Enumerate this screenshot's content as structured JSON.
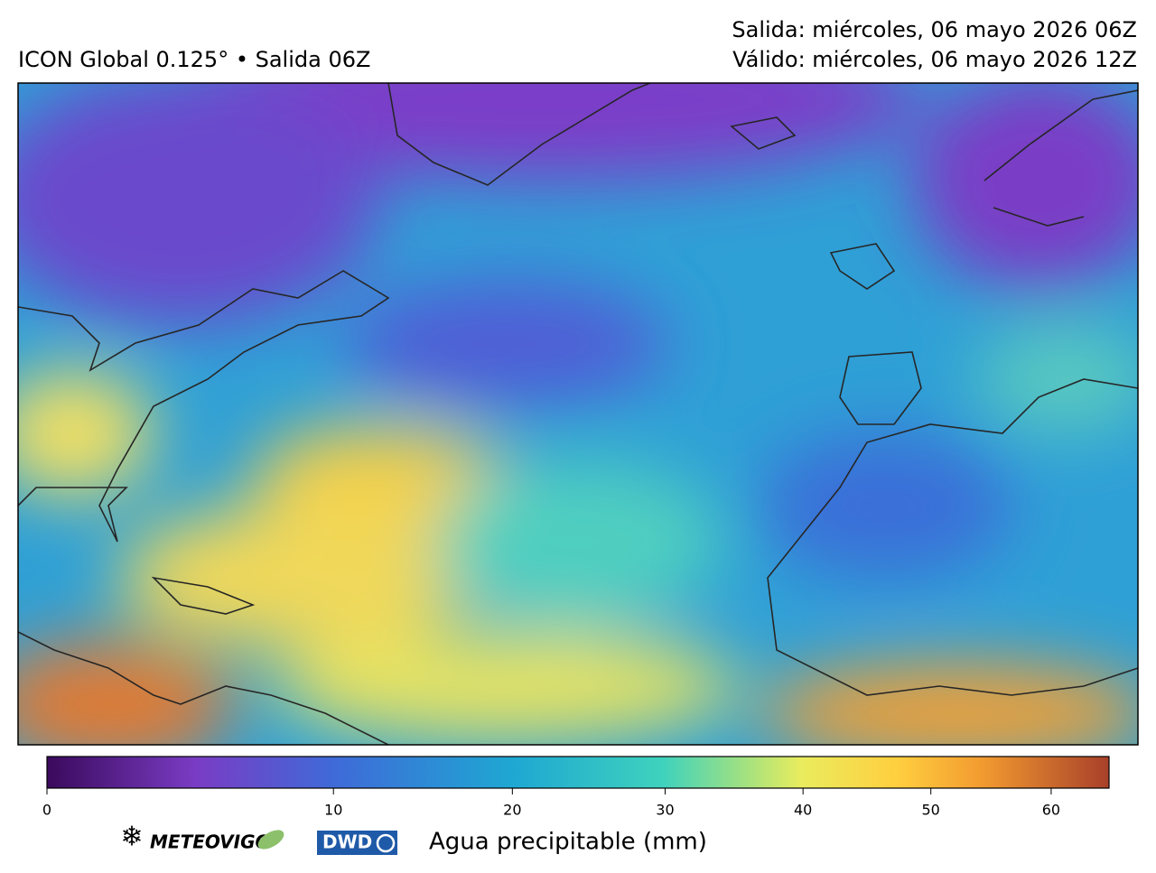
{
  "header": {
    "title": "ICON Global 0.125° • Salida 06Z",
    "run": "Salida: miércoles, 06 mayo 2026 06Z",
    "valid": "Válido: miércoles, 06 mayo 2026 12Z"
  },
  "colorbar": {
    "label": "Agua precipitable (mm)",
    "clim": [
      0,
      65
    ],
    "scale": "power",
    "exponent": 0.7,
    "ticks": [
      0,
      10,
      20,
      30,
      40,
      50,
      60
    ]
  },
  "logos": {
    "meteovigo": "METEOVIGO",
    "dwd": "DWD"
  }
}
